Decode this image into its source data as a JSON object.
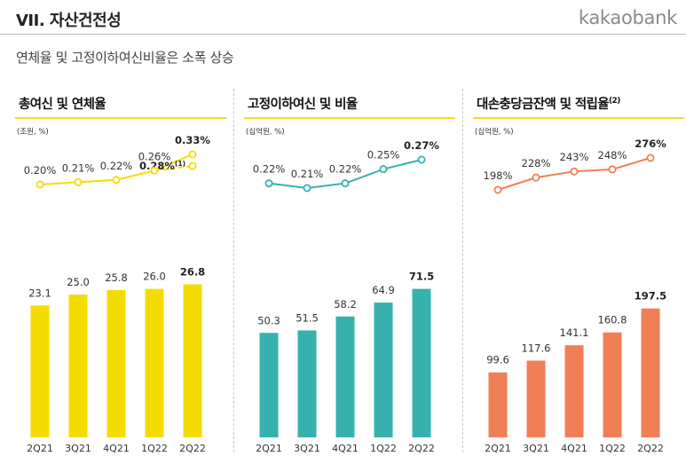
{
  "header": {
    "section_title": "VII. 자산건전성",
    "brand": "kakaobank",
    "subtitle": "연체율 및 고정이하여신비율은 소폭 상승"
  },
  "colors": {
    "yellow": "#f5dc00",
    "teal": "#36b1ae",
    "orange": "#f07f55",
    "rule_yellow": "#f5dc1e"
  },
  "chart_data": [
    {
      "type": "bar",
      "title": "총여신 및 연체율",
      "unit": "(조원, %)",
      "categories": [
        "2Q21",
        "3Q21",
        "4Q21",
        "1Q22",
        "2Q22"
      ],
      "series": [
        {
          "values": [
            23.1,
            25.0,
            25.8,
            26.0,
            26.8
          ],
          "labels": [
            "23.1",
            "25.0",
            "25.8",
            "26.0",
            "26.8"
          ]
        }
      ],
      "line": {
        "values": [
          0.2,
          0.21,
          0.22,
          0.26,
          0.33
        ],
        "labels": [
          "0.20%",
          "0.21%",
          "0.22%",
          "0.26%",
          "0.33%"
        ]
      },
      "line_alt": {
        "from_index": 3,
        "values": [
          0.26,
          0.28
        ],
        "label": "0.28%",
        "note": "(1)"
      },
      "ylim": [
        0,
        32
      ],
      "color": "#f5dc00"
    },
    {
      "type": "bar",
      "title": "고정이하여신 및 비율",
      "unit": "(십억원, %)",
      "categories": [
        "2Q21",
        "3Q21",
        "4Q21",
        "1Q22",
        "2Q22"
      ],
      "series": [
        {
          "values": [
            50.3,
            51.5,
            58.2,
            64.9,
            71.5
          ],
          "labels": [
            "50.3",
            "51.5",
            "58.2",
            "64.9",
            "71.5"
          ]
        }
      ],
      "line": {
        "values": [
          0.22,
          0.21,
          0.22,
          0.25,
          0.27
        ],
        "labels": [
          "0.22%",
          "0.21%",
          "0.22%",
          "0.25%",
          "0.27%"
        ]
      },
      "ylim": [
        0,
        88
      ],
      "color": "#36b1ae"
    },
    {
      "type": "bar",
      "title": "대손충당금잔액 및 적립율",
      "title_note": "(2)",
      "unit": "(십억원, %)",
      "categories": [
        "2Q21",
        "3Q21",
        "4Q21",
        "1Q22",
        "2Q22"
      ],
      "series": [
        {
          "values": [
            99.6,
            117.6,
            141.1,
            160.8,
            197.5
          ],
          "labels": [
            "99.6",
            "117.6",
            "141.1",
            "160.8",
            "197.5"
          ]
        }
      ],
      "line": {
        "values": [
          198,
          228,
          243,
          248,
          276
        ],
        "labels": [
          "198%",
          "228%",
          "243%",
          "248%",
          "276%"
        ]
      },
      "ylim": [
        0,
        280
      ],
      "color": "#f07f55"
    }
  ]
}
